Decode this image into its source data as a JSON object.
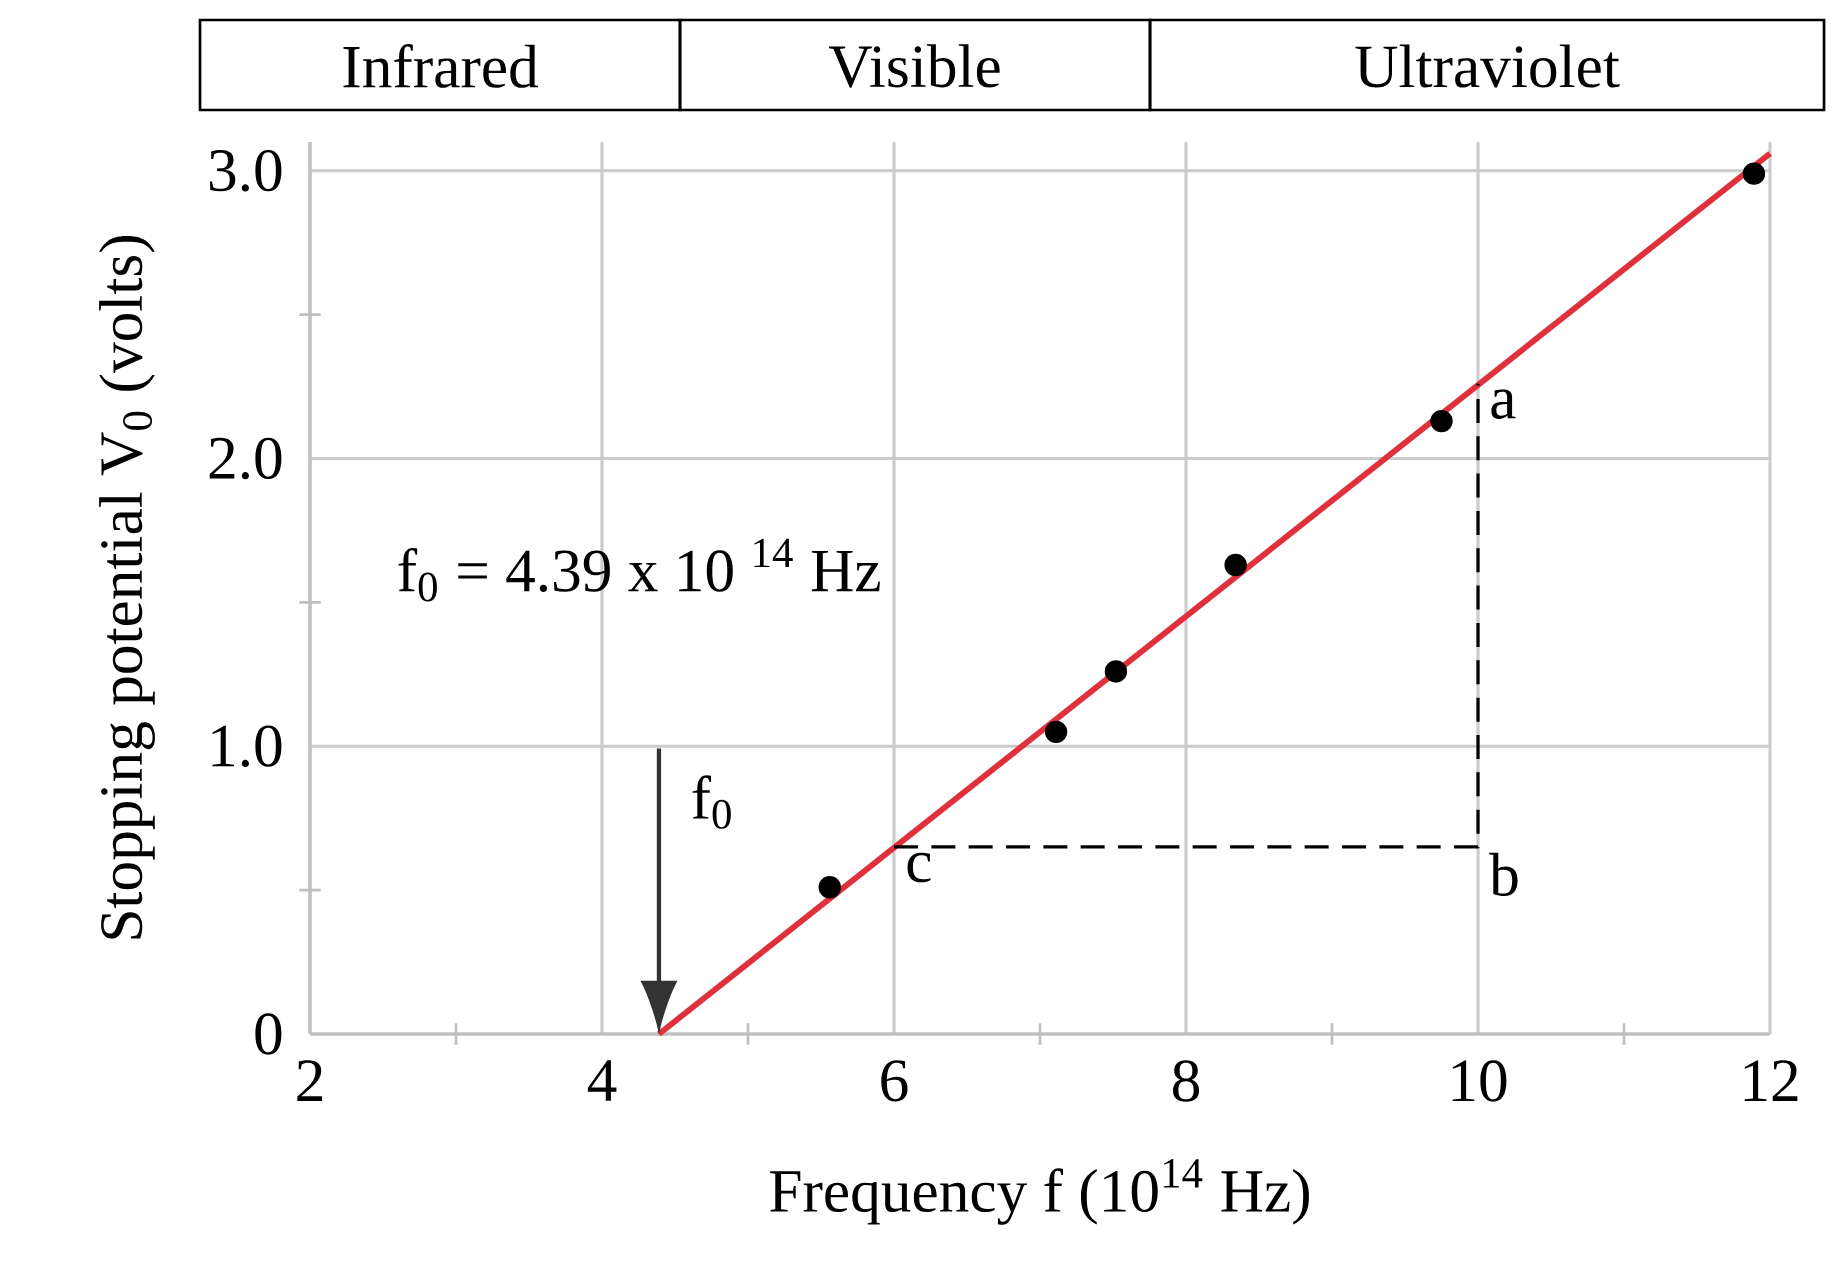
{
  "chart_data": {
    "type": "scatter",
    "xlabel": "Frequency  f (10$^{14}$ Hz)",
    "ylabel": "Stopping potential  V$_{0}$ (volts)",
    "xlim": [
      2,
      12
    ],
    "ylim": [
      0,
      3.1
    ],
    "xticks": [
      2,
      {
        "value": 3,
        "label": null
      },
      4,
      {
        "value": 5,
        "label": null
      },
      6,
      {
        "value": 7,
        "label": null
      },
      8,
      {
        "value": 9,
        "label": null
      },
      10,
      {
        "value": 11,
        "label": null
      },
      12
    ],
    "yticks": [
      0,
      {
        "value": 0.5,
        "label": null
      },
      {
        "value": 1,
        "label": "1.0"
      },
      {
        "value": 1.5,
        "label": null
      },
      {
        "value": 2,
        "label": "2.0"
      },
      {
        "value": 2.5,
        "label": null
      },
      {
        "value": 3,
        "label": "3.0"
      }
    ],
    "grid": true,
    "series": [
      {
        "type": "line",
        "color": "#e0303c",
        "marker": "none",
        "line_style": "solid",
        "x": [
          4.39,
          12
        ],
        "values": [
          0,
          3.06
        ]
      },
      {
        "type": "line",
        "color": "#000000",
        "marker": "none",
        "line_style": "dashed",
        "x": [
          6,
          10,
          10
        ],
        "values": [
          0.65,
          0.65,
          2.26
        ]
      },
      {
        "color": "#000000",
        "marker": "circle",
        "x": [
          5.56,
          7.11,
          7.52,
          8.34,
          9.75,
          11.89
        ],
        "values": [
          0.51,
          1.05,
          1.26,
          1.63,
          2.13,
          2.99
        ]
      }
    ],
    "annotations": [
      "Infrared",
      "Visible",
      "Ultraviolet",
      "f$_{0}$ = 4.39 x 10 $^{14}$ Hz",
      "a",
      "b",
      "c",
      "f$_{0}$"
    ]
  }
}
